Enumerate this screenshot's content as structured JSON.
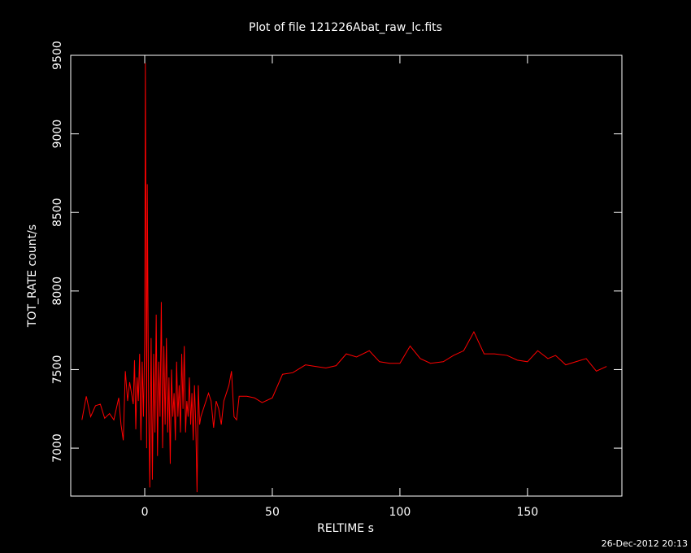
{
  "chart_data": {
    "type": "line",
    "title": "Plot of file 121226Abat_raw_lc.fits",
    "x_label": "RELTIME  s",
    "y_label": "TOT_RATE  count/s",
    "footer": "26-Dec-2012 20:13",
    "color": "#ff0000",
    "xlim": [
      -29,
      187
    ],
    "xticks": [
      0,
      50,
      100,
      150
    ],
    "ylim": [
      6695,
      9500
    ],
    "yticks": [
      7000,
      7500,
      8000,
      8500,
      9000,
      9500
    ],
    "x": [
      -24.6,
      -22.9,
      -21.2,
      -19.3,
      -17.4,
      -15.7,
      -13.8,
      -12.1,
      -10.2,
      -9.3,
      -8.4,
      -7.6,
      -6.7,
      -5.9,
      -5.2,
      -4.5,
      -4,
      -3.5,
      -3,
      -2.5,
      -2,
      -1.5,
      -1,
      -0.5,
      0,
      0.25,
      0.5,
      0.75,
      1,
      1.5,
      2,
      2.5,
      3,
      3.5,
      4,
      4.5,
      5,
      5.5,
      6,
      6.5,
      7,
      7.5,
      8,
      8.5,
      9,
      9.5,
      10,
      10.5,
      11,
      11.5,
      12,
      12.5,
      13,
      13.5,
      14,
      14.5,
      15,
      15.5,
      16,
      16.5,
      17,
      17.5,
      18,
      18.5,
      19,
      19.5,
      20,
      20.5,
      21,
      21.5,
      22,
      23,
      24,
      25,
      26,
      27,
      28,
      29,
      30,
      31,
      32,
      33,
      34,
      35,
      36,
      37,
      40,
      43,
      46,
      50,
      54,
      58,
      63,
      67,
      71,
      75,
      79,
      83,
      88,
      92,
      96,
      100,
      104,
      108,
      112,
      117,
      121,
      125,
      129,
      133,
      137,
      142,
      146,
      150,
      154,
      158,
      161,
      165,
      169,
      173,
      177,
      181
    ],
    "values": [
      7180,
      7330,
      7200,
      7270,
      7280,
      7190,
      7220,
      7180,
      7320,
      7150,
      7050,
      7490,
      7300,
      7420,
      7350,
      7280,
      7560,
      7120,
      7450,
      7300,
      7600,
      7050,
      7550,
      7200,
      7700,
      9450,
      8300,
      7000,
      8680,
      7300,
      6750,
      7700,
      6800,
      7600,
      7100,
      7850,
      6950,
      7550,
      7200,
      7930,
      7000,
      7650,
      7150,
      7700,
      7100,
      7450,
      6900,
      7500,
      7200,
      7350,
      7050,
      7550,
      7200,
      7400,
      7100,
      7600,
      7250,
      7650,
      7100,
      7300,
      7200,
      7450,
      7150,
      7350,
      7050,
      7400,
      7150,
      6720,
      7400,
      7150,
      7200,
      7250,
      7300,
      7350,
      7300,
      7130,
      7300,
      7250,
      7150,
      7300,
      7350,
      7400,
      7490,
      7200,
      7180,
      7330,
      7330,
      7320,
      7290,
      7320,
      7470,
      7480,
      7530,
      7520,
      7510,
      7525,
      7600,
      7580,
      7620,
      7550,
      7540,
      7540,
      7650,
      7570,
      7540,
      7550,
      7590,
      7620,
      7740,
      7600,
      7600,
      7590,
      7560,
      7550,
      7620,
      7570,
      7590,
      7530,
      7550,
      7570,
      7490,
      7520
    ]
  }
}
